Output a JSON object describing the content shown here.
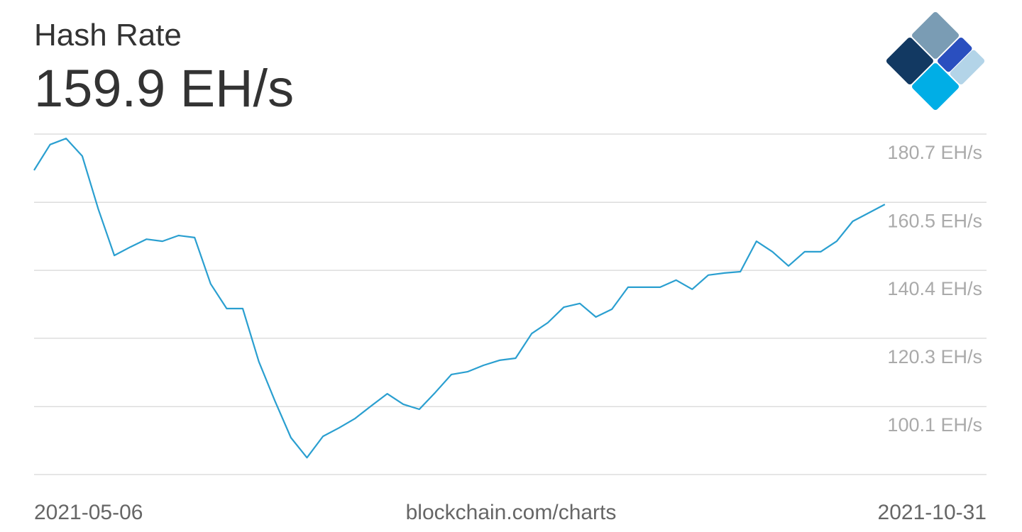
{
  "chart_data": {
    "type": "line",
    "title": "Hash Rate",
    "subtitle": "159.9 EH/s",
    "caption": "blockchain.com/charts",
    "x": [
      "2021-05-06",
      "2021-05-09",
      "2021-05-12",
      "2021-05-15",
      "2021-05-18",
      "2021-05-21",
      "2021-05-24",
      "2021-05-27",
      "2021-05-30",
      "2021-06-02",
      "2021-06-05",
      "2021-06-08",
      "2021-06-11",
      "2021-06-14",
      "2021-06-17",
      "2021-06-20",
      "2021-06-23",
      "2021-06-26",
      "2021-06-29",
      "2021-07-02",
      "2021-07-05",
      "2021-07-08",
      "2021-07-11",
      "2021-07-14",
      "2021-07-17",
      "2021-07-20",
      "2021-07-23",
      "2021-07-26",
      "2021-07-29",
      "2021-08-01",
      "2021-08-04",
      "2021-08-07",
      "2021-08-10",
      "2021-08-13",
      "2021-08-16",
      "2021-08-19",
      "2021-08-22",
      "2021-08-25",
      "2021-08-28",
      "2021-08-31",
      "2021-09-03",
      "2021-09-06",
      "2021-09-09",
      "2021-09-12",
      "2021-09-15",
      "2021-09-18",
      "2021-09-21",
      "2021-09-24",
      "2021-09-27",
      "2021-09-30",
      "2021-10-03",
      "2021-10-06",
      "2021-10-09",
      "2021-10-12"
    ],
    "values": [
      170.0,
      177.6,
      179.4,
      174.2,
      158.5,
      144.8,
      147.3,
      149.6,
      149.0,
      150.7,
      150.1,
      136.4,
      129.1,
      129.1,
      113.4,
      101.8,
      90.9,
      85.0,
      91.3,
      93.8,
      96.6,
      100.3,
      103.9,
      100.8,
      99.3,
      104.3,
      109.6,
      110.4,
      112.3,
      113.8,
      114.4,
      121.7,
      124.9,
      129.5,
      130.6,
      126.6,
      128.9,
      135.4,
      135.4,
      135.4,
      137.5,
      134.8,
      139.0,
      139.6,
      140.0,
      149.0,
      145.9,
      141.7,
      145.9,
      145.9,
      149.0,
      154.9,
      157.4,
      159.9
    ],
    "color": "#2a9fd0",
    "xlim": [
      "2021-05-06",
      "2021-10-31"
    ],
    "xticks": [
      "2021-05-06",
      "2021-10-31"
    ],
    "ylim": [
      80.0,
      180.7
    ],
    "yticks": [
      {
        "value": 180.7,
        "label": "180.7 EH/s"
      },
      {
        "value": 160.5,
        "label": "160.5 EH/s"
      },
      {
        "value": 140.4,
        "label": "140.4 EH/s"
      },
      {
        "value": 120.3,
        "label": "120.3 EH/s"
      },
      {
        "value": 100.1,
        "label": "100.1 EH/s"
      }
    ],
    "grid": true
  }
}
